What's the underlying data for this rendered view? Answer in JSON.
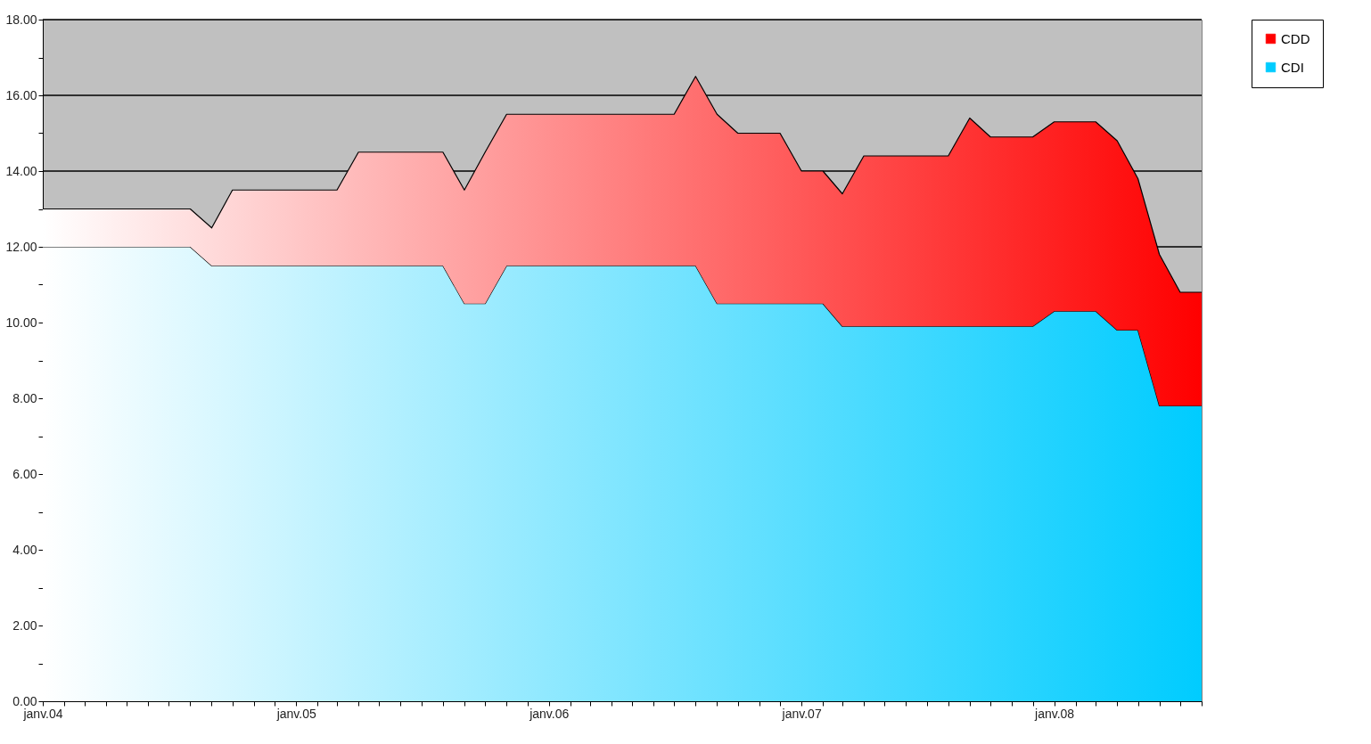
{
  "chart_data": {
    "type": "area",
    "x": [
      "2004-01",
      "2004-02",
      "2004-03",
      "2004-04",
      "2004-05",
      "2004-06",
      "2004-07",
      "2004-08",
      "2004-09",
      "2004-10",
      "2004-11",
      "2004-12",
      "2005-01",
      "2005-02",
      "2005-03",
      "2005-04",
      "2005-05",
      "2005-06",
      "2005-07",
      "2005-08",
      "2005-09",
      "2005-10",
      "2005-11",
      "2005-12",
      "2006-01",
      "2006-02",
      "2006-03",
      "2006-04",
      "2006-05",
      "2006-06",
      "2006-07",
      "2006-08",
      "2006-09",
      "2006-10",
      "2006-11",
      "2006-12",
      "2007-01",
      "2007-02",
      "2007-03",
      "2007-04",
      "2007-05",
      "2007-06",
      "2007-07",
      "2007-08",
      "2007-09",
      "2007-10",
      "2007-11",
      "2007-12",
      "2008-01",
      "2008-02",
      "2008-03",
      "2008-04",
      "2008-05",
      "2008-06",
      "2008-07",
      "2008-08"
    ],
    "series": [
      {
        "name": "CDI",
        "color": "#00ccff",
        "values": [
          12,
          12,
          12,
          12,
          12,
          12,
          12,
          12,
          11.5,
          11.5,
          11.5,
          11.5,
          11.5,
          11.5,
          11.5,
          11.5,
          11.5,
          11.5,
          11.5,
          11.5,
          10.5,
          10.5,
          11.5,
          11.5,
          11.5,
          11.5,
          11.5,
          11.5,
          11.5,
          11.5,
          11.5,
          11.5,
          10.5,
          10.5,
          10.5,
          10.5,
          10.5,
          10.5,
          9.9,
          9.9,
          9.9,
          9.9,
          9.9,
          9.9,
          9.9,
          9.9,
          9.9,
          9.9,
          10.3,
          10.3,
          10.3,
          9.8,
          9.8,
          7.8,
          7.8,
          7.8
        ]
      },
      {
        "name": "CDD",
        "color": "#ff0000",
        "values": [
          1,
          1,
          1,
          1,
          1,
          1,
          1,
          1,
          1,
          2,
          2,
          2,
          2,
          2,
          2,
          3,
          3,
          3,
          3,
          3,
          3,
          4,
          4,
          4,
          4,
          4,
          4,
          4,
          4,
          4,
          4,
          5,
          5,
          4.5,
          4.5,
          4.5,
          3.5,
          3.5,
          3.5,
          4.5,
          4.5,
          4.5,
          4.5,
          4.5,
          5.5,
          5,
          5,
          5,
          5,
          5,
          5,
          5,
          4,
          4,
          3,
          3
        ]
      }
    ],
    "stacked": true,
    "xlim": [
      "2004-01",
      "2008-08"
    ],
    "xticks": [
      {
        "value": "2004-01",
        "label": "janv.04"
      },
      {
        "value": "2004-02",
        "label": null
      },
      {
        "value": "2004-03",
        "label": null
      },
      {
        "value": "2004-04",
        "label": null
      },
      {
        "value": "2004-05",
        "label": null
      },
      {
        "value": "2004-06",
        "label": null
      },
      {
        "value": "2004-07",
        "label": null
      },
      {
        "value": "2004-08",
        "label": null
      },
      {
        "value": "2004-09",
        "label": null
      },
      {
        "value": "2004-10",
        "label": null
      },
      {
        "value": "2004-11",
        "label": null
      },
      {
        "value": "2004-12",
        "label": null
      },
      {
        "value": "2005-01",
        "label": "janv.05"
      },
      {
        "value": "2005-02",
        "label": null
      },
      {
        "value": "2005-03",
        "label": null
      },
      {
        "value": "2005-04",
        "label": null
      },
      {
        "value": "2005-05",
        "label": null
      },
      {
        "value": "2005-06",
        "label": null
      },
      {
        "value": "2005-07",
        "label": null
      },
      {
        "value": "2005-08",
        "label": null
      },
      {
        "value": "2005-09",
        "label": null
      },
      {
        "value": "2005-10",
        "label": null
      },
      {
        "value": "2005-11",
        "label": null
      },
      {
        "value": "2005-12",
        "label": null
      },
      {
        "value": "2006-01",
        "label": "janv.06"
      },
      {
        "value": "2006-02",
        "label": null
      },
      {
        "value": "2006-03",
        "label": null
      },
      {
        "value": "2006-04",
        "label": null
      },
      {
        "value": "2006-05",
        "label": null
      },
      {
        "value": "2006-06",
        "label": null
      },
      {
        "value": "2006-07",
        "label": null
      },
      {
        "value": "2006-08",
        "label": null
      },
      {
        "value": "2006-09",
        "label": null
      },
      {
        "value": "2006-10",
        "label": null
      },
      {
        "value": "2006-11",
        "label": null
      },
      {
        "value": "2006-12",
        "label": null
      },
      {
        "value": "2007-01",
        "label": "janv.07"
      },
      {
        "value": "2007-02",
        "label": null
      },
      {
        "value": "2007-03",
        "label": null
      },
      {
        "value": "2007-04",
        "label": null
      },
      {
        "value": "2007-05",
        "label": null
      },
      {
        "value": "2007-06",
        "label": null
      },
      {
        "value": "2007-07",
        "label": null
      },
      {
        "value": "2007-08",
        "label": null
      },
      {
        "value": "2007-09",
        "label": null
      },
      {
        "value": "2007-10",
        "label": null
      },
      {
        "value": "2007-11",
        "label": null
      },
      {
        "value": "2007-12",
        "label": null
      },
      {
        "value": "2008-01",
        "label": "janv.08"
      },
      {
        "value": "2008-02",
        "label": null
      },
      {
        "value": "2008-03",
        "label": null
      },
      {
        "value": "2008-04",
        "label": null
      },
      {
        "value": "2008-05",
        "label": null
      },
      {
        "value": "2008-06",
        "label": null
      },
      {
        "value": "2008-07",
        "label": null
      },
      {
        "value": "2008-08",
        "label": null
      }
    ],
    "ylim": [
      0,
      18
    ],
    "yticks": [
      {
        "value": 0,
        "label": "0.00"
      },
      {
        "value": 1,
        "label": null
      },
      {
        "value": 2,
        "label": "2.00"
      },
      {
        "value": 3,
        "label": null
      },
      {
        "value": 4,
        "label": "4.00"
      },
      {
        "value": 5,
        "label": null
      },
      {
        "value": 6,
        "label": "6.00"
      },
      {
        "value": 7,
        "label": null
      },
      {
        "value": 8,
        "label": "8.00"
      },
      {
        "value": 9,
        "label": null
      },
      {
        "value": 10,
        "label": "10.00"
      },
      {
        "value": 11,
        "label": null
      },
      {
        "value": 12,
        "label": "12.00"
      },
      {
        "value": 13,
        "label": null
      },
      {
        "value": 14,
        "label": "14.00"
      },
      {
        "value": 15,
        "label": null
      },
      {
        "value": 16,
        "label": "16.00"
      },
      {
        "value": 17,
        "label": null
      },
      {
        "value": 18,
        "label": "18.00"
      }
    ],
    "grid": "y",
    "legend": "right"
  }
}
